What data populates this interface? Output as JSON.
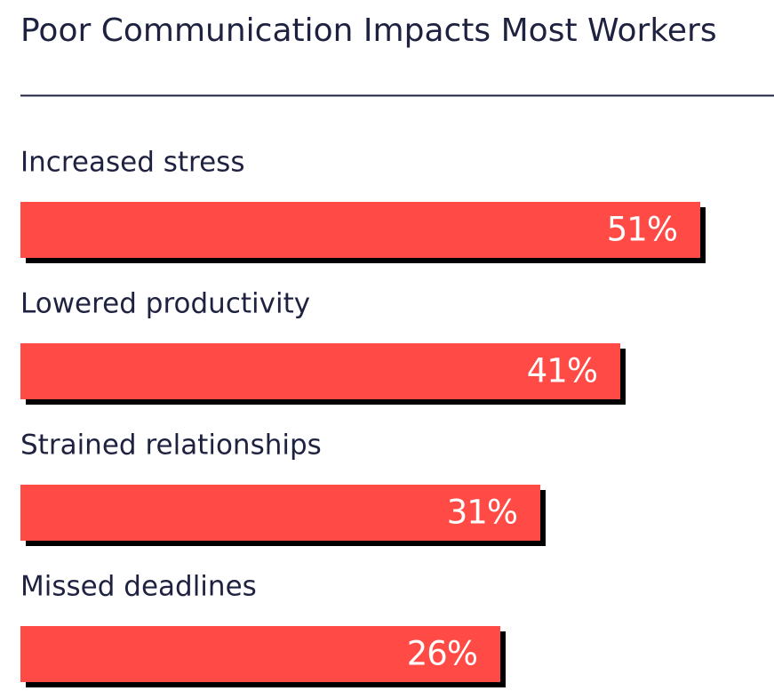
{
  "chart_data": {
    "type": "bar",
    "orientation": "horizontal",
    "title": "Poor Communication Impacts Most Workers",
    "categories": [
      "Increased stress",
      "Lowered productivity",
      "Strained relationships",
      "Missed deadlines"
    ],
    "values": [
      51,
      41,
      31,
      26
    ],
    "value_labels": [
      "51%",
      "41%",
      "31%",
      "26%"
    ],
    "color": "#ff4a45"
  }
}
